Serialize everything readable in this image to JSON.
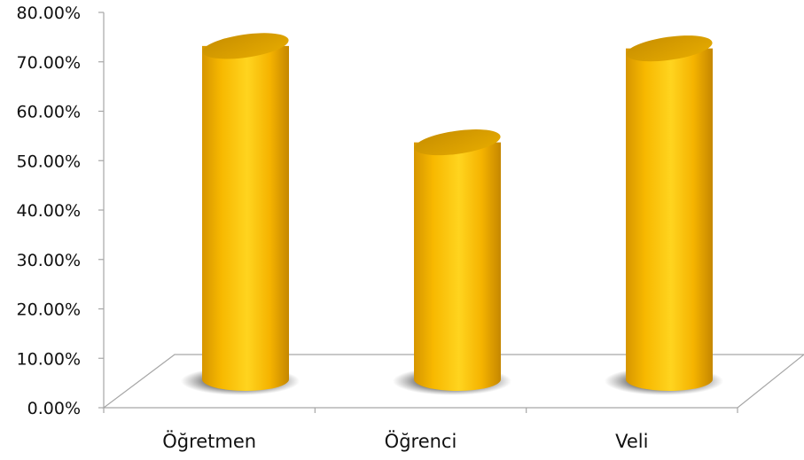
{
  "chart_data": {
    "type": "bar",
    "style": "3d-cylinder",
    "categories": [
      "Öğretmen",
      "Öğrenci",
      "Veli"
    ],
    "series": [
      {
        "values": [
          75.0,
          55.5,
          74.5
        ]
      }
    ],
    "y_ticks": [
      "0.00%",
      "10.00%",
      "20.00%",
      "30.00%",
      "40.00%",
      "50.00%",
      "60.00%",
      "70.00%",
      "80.00%"
    ],
    "ylim": [
      0,
      80
    ],
    "grid": false,
    "legend": "none",
    "title": "",
    "xlabel": "",
    "ylabel": "",
    "colors": {
      "bar_light": "#ffd21a",
      "bar_mid": "#f7b500",
      "bar_dark": "#c98a00",
      "bar_top": "#d9a000",
      "axis": "#a6a6a6"
    }
  }
}
